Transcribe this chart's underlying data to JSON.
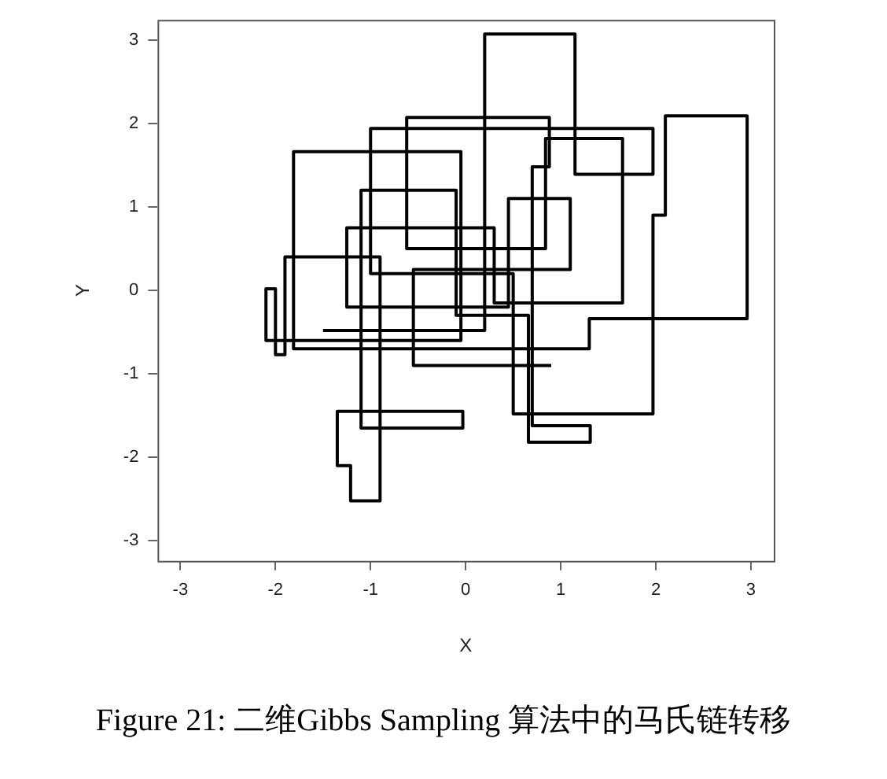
{
  "chart_data": {
    "type": "line",
    "xlabel": "X",
    "ylabel": "Y",
    "annotations": [
      "Figure 21: 二维Gibbs Sampling 算法中的马氏链转移"
    ],
    "xlim": [
      -3.24,
      3.24
    ],
    "ylim": [
      -3.24,
      3.24
    ],
    "xticks": [
      -3,
      -2,
      -1,
      0,
      1,
      2,
      3
    ],
    "yticks": [
      -3,
      -2,
      -1,
      0,
      1,
      2,
      3
    ],
    "grid": false,
    "marker": "none",
    "line_style": "solid",
    "x": [
      -1.5,
      0.2,
      0.2,
      1.15,
      1.15,
      1.97,
      1.97,
      -1.0,
      -1.0,
      0.5,
      0.5,
      1.97,
      1.97,
      2.1,
      2.1,
      2.96,
      2.96,
      1.3,
      1.3,
      -1.81,
      -1.81,
      -0.05,
      -0.05,
      -2.1,
      -2.1,
      -2.0,
      -2.0,
      -1.9,
      -1.9,
      -0.9,
      -0.9,
      -1.21,
      -1.21,
      -1.35,
      -1.35,
      -0.03,
      -0.03,
      -1.1,
      -1.1,
      -0.1,
      -0.1,
      0.66,
      0.66,
      1.31,
      1.31,
      0.7,
      0.7,
      0.88,
      0.88,
      -0.62,
      -0.62,
      0.84,
      0.84,
      1.65,
      1.65,
      0.3,
      0.3,
      -1.25,
      -1.25,
      0.45,
      0.45,
      1.1,
      1.1,
      -0.55,
      -0.55,
      0.9
    ],
    "series": [
      {
        "color": "#000000",
        "values": [
          -0.48,
          -0.48,
          3.07,
          3.07,
          1.39,
          1.39,
          1.94,
          1.94,
          0.2,
          0.2,
          -1.48,
          -1.48,
          0.9,
          0.9,
          2.09,
          2.09,
          -0.34,
          -0.34,
          -0.7,
          -0.7,
          1.66,
          1.66,
          -0.6,
          -0.6,
          0.02,
          0.02,
          -0.77,
          -0.77,
          0.4,
          0.4,
          -2.52,
          -2.52,
          -2.1,
          -2.1,
          -1.45,
          -1.45,
          -1.65,
          -1.65,
          1.2,
          1.2,
          -0.3,
          -0.3,
          -1.82,
          -1.82,
          -1.62,
          -1.62,
          1.48,
          1.48,
          2.07,
          2.07,
          0.5,
          0.5,
          1.82,
          1.82,
          -0.15,
          -0.15,
          0.75,
          0.75,
          -0.2,
          -0.2,
          1.1,
          1.1,
          0.25,
          0.25,
          -0.9,
          -0.9
        ]
      }
    ]
  }
}
